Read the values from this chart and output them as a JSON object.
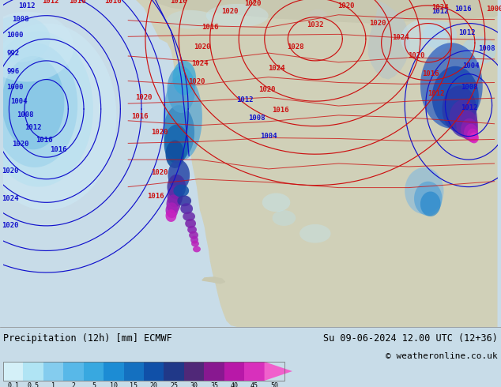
{
  "title_left": "Precipitation (12h) [mm] ECMWF",
  "title_right": "Su 09-06-2024 12.00 UTC (12+36)",
  "copyright": "© weatheronline.co.uk",
  "colorbar_labels": [
    "0.1",
    "0.5",
    "1",
    "2",
    "5",
    "10",
    "15",
    "20",
    "25",
    "30",
    "35",
    "40",
    "45",
    "50"
  ],
  "colorbar_colors": [
    "#d4f0f8",
    "#b0e4f4",
    "#84ccee",
    "#58b8e8",
    "#38a8e0",
    "#1c8cd4",
    "#1470c0",
    "#1050a8",
    "#203888",
    "#502878",
    "#881890",
    "#b818a8",
    "#d830bc",
    "#f060cc"
  ],
  "map_ocean_color": "#c8dce8",
  "map_land_color": "#d8d8c0",
  "map_land_dark": "#c8c8b0",
  "bottom_bg": "#d8d8d8",
  "fig_width": 6.34,
  "fig_height": 4.9,
  "dpi": 100,
  "prec_light1": "#c8ecf8",
  "prec_light2": "#a8ddf0",
  "prec_mid1": "#78c4e8",
  "prec_mid2": "#3898d0",
  "prec_dark1": "#1868b8",
  "prec_dark2": "#1040908",
  "prec_purple": "#6020880",
  "prec_magenta": "#c820b8"
}
